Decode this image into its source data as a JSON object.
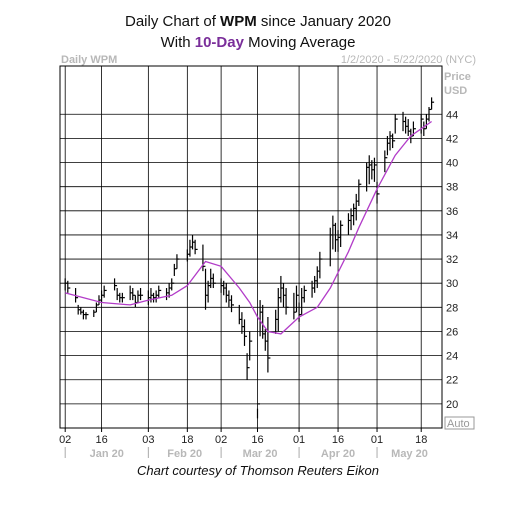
{
  "header": {
    "title_line1_pre": "Daily Chart of ",
    "title_line1_ticker": "WPM",
    "title_line1_post": " since January 2020",
    "title_line2_pre": "With ",
    "title_line2_ma": "10-Day",
    "title_line2_post": " Moving Average",
    "chart_label": "Daily WPM",
    "date_range": "1/2/2020 - 5/22/2020 (NYC)"
  },
  "credit": "Chart courtesy of Thomson Reuters Eikon",
  "colors": {
    "bars": "#000000",
    "moving_average": "#b23cc8",
    "grid": "#000000",
    "muted_text": "#b8b8b8"
  },
  "chart_data": {
    "type": "line",
    "ylabel": "Price USD",
    "ylabel_line1": "Price",
    "ylabel_line2": "USD",
    "ylim": [
      18,
      48
    ],
    "yticks": [
      20,
      22,
      24,
      26,
      28,
      30,
      32,
      34,
      36,
      38,
      40,
      42,
      44
    ],
    "xticks": [
      "02",
      "16",
      "03",
      "18",
      "02",
      "16",
      "01",
      "16",
      "01",
      "18"
    ],
    "xtick_dates": [
      "2020-01-02",
      "2020-01-16",
      "2020-02-03",
      "2020-02-18",
      "2020-03-02",
      "2020-03-16",
      "2020-04-01",
      "2020-04-16",
      "2020-05-01",
      "2020-05-18"
    ],
    "month_labels": [
      "Jan 20",
      "Feb 20",
      "Mar 20",
      "Apr 20",
      "May 20"
    ],
    "month_dates": [
      "2020-01-02",
      "2020-02-03",
      "2020-03-02",
      "2020-04-01",
      "2020-05-01"
    ],
    "scale_button": "Auto",
    "grid": true,
    "series": [
      {
        "name": "WPM",
        "kind": "ohlc",
        "dates": [
          "2020-01-02",
          "2020-01-03",
          "2020-01-06",
          "2020-01-07",
          "2020-01-08",
          "2020-01-09",
          "2020-01-10",
          "2020-01-13",
          "2020-01-14",
          "2020-01-15",
          "2020-01-16",
          "2020-01-17",
          "2020-01-21",
          "2020-01-22",
          "2020-01-23",
          "2020-01-24",
          "2020-01-27",
          "2020-01-28",
          "2020-01-29",
          "2020-01-30",
          "2020-01-31",
          "2020-02-03",
          "2020-02-04",
          "2020-02-05",
          "2020-02-06",
          "2020-02-07",
          "2020-02-10",
          "2020-02-11",
          "2020-02-12",
          "2020-02-13",
          "2020-02-14",
          "2020-02-18",
          "2020-02-19",
          "2020-02-20",
          "2020-02-21",
          "2020-02-24",
          "2020-02-25",
          "2020-02-26",
          "2020-02-27",
          "2020-02-28",
          "2020-03-02",
          "2020-03-03",
          "2020-03-04",
          "2020-03-05",
          "2020-03-06",
          "2020-03-09",
          "2020-03-10",
          "2020-03-11",
          "2020-03-12",
          "2020-03-13",
          "2020-03-16",
          "2020-03-17",
          "2020-03-18",
          "2020-03-19",
          "2020-03-20",
          "2020-03-23",
          "2020-03-24",
          "2020-03-25",
          "2020-03-26",
          "2020-03-27",
          "2020-03-30",
          "2020-03-31",
          "2020-04-01",
          "2020-04-02",
          "2020-04-03",
          "2020-04-06",
          "2020-04-07",
          "2020-04-08",
          "2020-04-09",
          "2020-04-13",
          "2020-04-14",
          "2020-04-15",
          "2020-04-16",
          "2020-04-17",
          "2020-04-20",
          "2020-04-21",
          "2020-04-22",
          "2020-04-23",
          "2020-04-24",
          "2020-04-27",
          "2020-04-28",
          "2020-04-29",
          "2020-04-30",
          "2020-05-01",
          "2020-05-04",
          "2020-05-05",
          "2020-05-06",
          "2020-05-07",
          "2020-05-08",
          "2020-05-11",
          "2020-05-12",
          "2020-05-13",
          "2020-05-14",
          "2020-05-15",
          "2020-05-18",
          "2020-05-19",
          "2020-05-20",
          "2020-05-21",
          "2020-05-22"
        ],
        "high": [
          30.4,
          30.2,
          29.6,
          28.2,
          28.0,
          27.8,
          27.6,
          27.8,
          28.4,
          29.0,
          29.4,
          29.8,
          30.4,
          29.6,
          29.2,
          29.2,
          29.8,
          29.6,
          29.0,
          29.4,
          29.6,
          29.4,
          29.6,
          29.2,
          29.4,
          29.8,
          29.6,
          30.0,
          30.4,
          31.6,
          32.4,
          32.8,
          33.6,
          34.0,
          33.6,
          33.2,
          31.2,
          30.2,
          31.2,
          30.8,
          30.4,
          30.2,
          30.0,
          29.4,
          29.0,
          28.2,
          27.6,
          27.0,
          24.2,
          26.0,
          19.6,
          28.6,
          28.2,
          26.2,
          27.2,
          27.8,
          29.6,
          30.6,
          30.0,
          29.6,
          29.2,
          29.8,
          28.4,
          29.6,
          29.8,
          30.2,
          30.6,
          31.4,
          32.6,
          34.6,
          35.6,
          35.0,
          34.4,
          35.2,
          35.8,
          36.2,
          36.6,
          37.4,
          38.6,
          40.0,
          40.6,
          40.2,
          40.4,
          38.4,
          41.0,
          42.2,
          42.6,
          42.4,
          44.0,
          44.2,
          43.8,
          43.6,
          42.8,
          43.4,
          44.0,
          43.4,
          44.0,
          44.6,
          45.4
        ],
        "low": [
          29.4,
          29.2,
          28.4,
          27.4,
          27.4,
          27.0,
          27.0,
          27.2,
          27.6,
          28.2,
          28.4,
          28.8,
          29.4,
          28.6,
          28.4,
          28.4,
          28.6,
          28.6,
          28.0,
          28.4,
          28.6,
          28.2,
          28.4,
          28.4,
          28.4,
          28.8,
          28.6,
          28.8,
          29.4,
          30.6,
          31.2,
          31.8,
          32.2,
          32.8,
          32.4,
          31.0,
          27.8,
          28.4,
          29.6,
          29.6,
          29.2,
          29.0,
          28.4,
          28.0,
          27.6,
          26.6,
          25.8,
          24.8,
          22.0,
          23.6,
          18.8,
          25.6,
          25.4,
          24.4,
          22.6,
          25.8,
          26.0,
          28.4,
          28.0,
          27.4,
          27.0,
          27.6,
          26.8,
          27.4,
          28.4,
          28.8,
          29.2,
          29.6,
          30.4,
          31.4,
          32.8,
          32.6,
          32.6,
          33.0,
          34.0,
          34.4,
          34.8,
          35.2,
          36.4,
          37.6,
          38.2,
          38.6,
          38.4,
          36.6,
          39.2,
          40.6,
          41.0,
          41.2,
          42.4,
          42.6,
          42.4,
          42.2,
          41.6,
          42.2,
          42.4,
          42.2,
          42.8,
          43.4,
          44.4
        ],
        "close": [
          30.0,
          29.6,
          28.8,
          27.8,
          27.6,
          27.4,
          27.4,
          27.6,
          28.2,
          28.6,
          29.0,
          29.4,
          29.8,
          29.0,
          28.8,
          28.8,
          29.2,
          29.0,
          28.4,
          29.0,
          29.0,
          28.8,
          29.0,
          28.8,
          29.0,
          29.4,
          29.2,
          29.6,
          30.0,
          31.2,
          32.0,
          32.4,
          33.0,
          33.4,
          32.8,
          31.4,
          29.0,
          29.8,
          30.4,
          30.0,
          29.8,
          29.6,
          29.0,
          28.6,
          28.2,
          27.0,
          26.4,
          25.6,
          23.0,
          25.2,
          20.0,
          27.6,
          25.8,
          25.2,
          23.8,
          27.0,
          28.8,
          29.6,
          29.0,
          28.0,
          27.6,
          29.0,
          27.4,
          28.8,
          29.4,
          29.6,
          30.2,
          31.0,
          32.0,
          34.0,
          34.8,
          33.6,
          33.8,
          34.8,
          35.2,
          35.6,
          36.2,
          36.8,
          38.2,
          39.6,
          39.8,
          39.4,
          39.8,
          37.4,
          40.4,
          41.6,
          42.2,
          41.8,
          43.6,
          43.4,
          43.0,
          42.6,
          42.2,
          42.8,
          43.6,
          42.8,
          43.6,
          44.4,
          45.0
        ]
      },
      {
        "name": "10-Day",
        "kind": "line",
        "dates": [
          "2020-01-02",
          "2020-01-16",
          "2020-01-27",
          "2020-02-03",
          "2020-02-12",
          "2020-02-18",
          "2020-02-25",
          "2020-03-02",
          "2020-03-09",
          "2020-03-13",
          "2020-03-16",
          "2020-03-20",
          "2020-03-25",
          "2020-04-01",
          "2020-04-08",
          "2020-04-13",
          "2020-04-20",
          "2020-04-24",
          "2020-05-01",
          "2020-05-08",
          "2020-05-14",
          "2020-05-22"
        ],
        "values": [
          29.2,
          28.4,
          28.2,
          28.6,
          29.0,
          29.8,
          31.8,
          31.4,
          29.6,
          28.4,
          27.2,
          26.0,
          25.8,
          27.2,
          28.0,
          29.6,
          32.6,
          34.6,
          37.8,
          40.6,
          42.2,
          43.4
        ]
      }
    ]
  }
}
